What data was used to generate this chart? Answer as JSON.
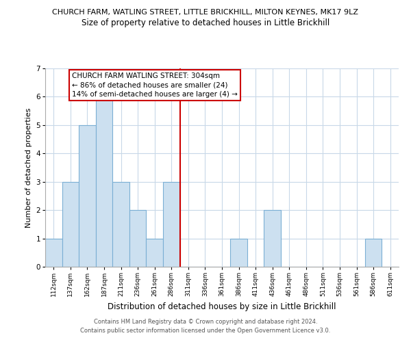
{
  "title": "CHURCH FARM, WATLING STREET, LITTLE BRICKHILL, MILTON KEYNES, MK17 9LZ",
  "subtitle": "Size of property relative to detached houses in Little Brickhill",
  "xlabel": "Distribution of detached houses by size in Little Brickhill",
  "ylabel": "Number of detached properties",
  "bin_labels": [
    "112sqm",
    "137sqm",
    "162sqm",
    "187sqm",
    "211sqm",
    "236sqm",
    "261sqm",
    "286sqm",
    "311sqm",
    "336sqm",
    "361sqm",
    "386sqm",
    "411sqm",
    "436sqm",
    "461sqm",
    "486sqm",
    "511sqm",
    "536sqm",
    "561sqm",
    "586sqm",
    "611sqm"
  ],
  "bar_values": [
    1,
    3,
    5,
    6,
    3,
    2,
    1,
    3,
    0,
    0,
    0,
    1,
    0,
    2,
    0,
    0,
    0,
    0,
    0,
    1,
    0
  ],
  "bar_color": "#cce0f0",
  "bar_edge_color": "#7bafd4",
  "vline_x": 8,
  "vline_color": "#cc0000",
  "ylim": [
    0,
    7
  ],
  "yticks": [
    0,
    1,
    2,
    3,
    4,
    5,
    6,
    7
  ],
  "annotation_title": "CHURCH FARM WATLING STREET: 304sqm",
  "annotation_line1": "← 86% of detached houses are smaller (24)",
  "annotation_line2": "14% of semi-detached houses are larger (4) →",
  "annotation_box_edge": "#cc0000",
  "footer_line1": "Contains HM Land Registry data © Crown copyright and database right 2024.",
  "footer_line2": "Contains public sector information licensed under the Open Government Licence v3.0.",
  "title_fontsize": 8.0,
  "subtitle_fontsize": 8.5,
  "ylabel_fontsize": 8.0,
  "xlabel_fontsize": 8.5,
  "tick_fontsize": 6.5,
  "annotation_fontsize": 7.5,
  "footer_fontsize": 6.0
}
